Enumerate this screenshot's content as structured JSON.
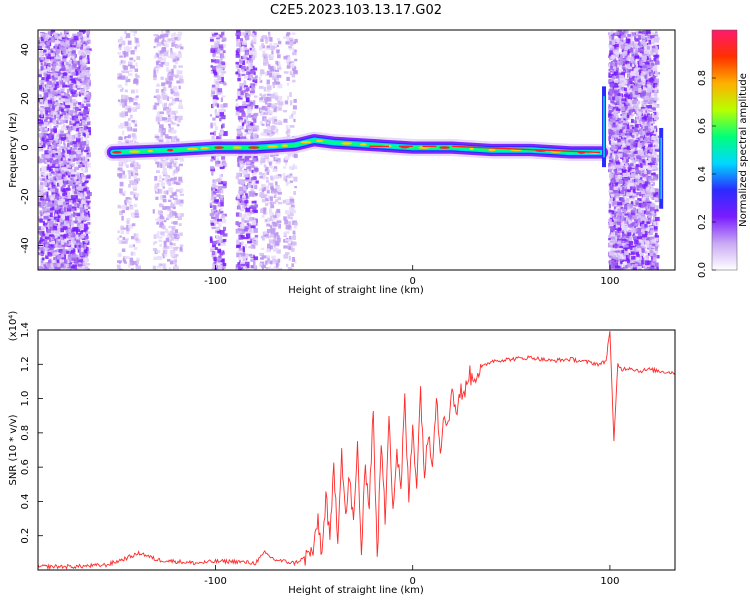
{
  "title": "C2E5.2023.103.13.17.G02",
  "chart_data": [
    {
      "type": "heatmap",
      "xlabel": "Height of straight line (km)",
      "ylabel": "Frequency (Hz)",
      "xlim": [
        -190,
        133
      ],
      "ylim": [
        -50,
        48
      ],
      "xticks": [
        -100,
        0,
        100
      ],
      "yticks": [
        -40,
        -20,
        0,
        20,
        40
      ],
      "ridge": [
        {
          "x": -152,
          "y": -2
        },
        {
          "x": -120,
          "y": -1
        },
        {
          "x": -100,
          "y": 0
        },
        {
          "x": -80,
          "y": 0
        },
        {
          "x": -60,
          "y": 1
        },
        {
          "x": -50,
          "y": 3
        },
        {
          "x": -40,
          "y": 2
        },
        {
          "x": -20,
          "y": 1
        },
        {
          "x": 0,
          "y": 0
        },
        {
          "x": 20,
          "y": 0
        },
        {
          "x": 40,
          "y": -1
        },
        {
          "x": 60,
          "y": -1
        },
        {
          "x": 80,
          "y": -2
        },
        {
          "x": 96,
          "y": -2
        }
      ],
      "colorbar": {
        "label": "Normalized spectral amplitude",
        "range": [
          0,
          1
        ],
        "ticks": [
          "0.0",
          "0.2",
          "0.4",
          "0.6",
          "0.8"
        ],
        "colors": [
          "#ffffff",
          "#c9a9f4",
          "#7a1cff",
          "#2b2bff",
          "#00d8ff",
          "#00ff7a",
          "#b8ff00",
          "#ffb000",
          "#ff3000",
          "#ff1a6e"
        ]
      }
    },
    {
      "type": "line",
      "xlabel": "Height of straight line (km)",
      "ylabel": "SNR (10 * v/v)",
      "y_multiplier": "(x10⁴)",
      "xlim": [
        -190,
        133
      ],
      "ylim": [
        0.0,
        1.4
      ],
      "xticks": [
        -100,
        0,
        100
      ],
      "yticks": [
        0.2,
        0.4,
        0.6,
        0.8,
        1.0,
        1.2,
        1.4
      ],
      "color": "#ff2a2a",
      "series": [
        {
          "x": [
            -190,
            -170,
            -155,
            -145,
            -138,
            -130,
            -120,
            -110,
            -100,
            -90,
            -80,
            -75,
            -70,
            -60,
            -55,
            -50,
            -48,
            -46,
            -44,
            -42,
            -40,
            -38,
            -36,
            -34,
            -32,
            -30,
            -28,
            -26,
            -24,
            -22,
            -20,
            -18,
            -16,
            -14,
            -12,
            -10,
            -8,
            -6,
            -4,
            -2,
            0,
            2,
            4,
            6,
            8,
            10,
            12,
            14,
            16,
            18,
            20,
            22,
            24,
            26,
            28,
            30,
            35,
            40,
            50,
            60,
            70,
            80,
            90,
            95,
            98,
            100,
            102,
            104,
            106,
            110,
            115,
            120,
            125,
            133
          ],
          "values": [
            0.02,
            0.02,
            0.03,
            0.07,
            0.1,
            0.06,
            0.05,
            0.04,
            0.05,
            0.05,
            0.04,
            0.1,
            0.06,
            0.04,
            0.07,
            0.12,
            0.3,
            0.08,
            0.45,
            0.15,
            0.6,
            0.2,
            0.7,
            0.3,
            0.55,
            0.25,
            0.72,
            0.1,
            0.6,
            0.4,
            0.95,
            0.05,
            0.75,
            0.3,
            0.95,
            0.35,
            0.7,
            0.45,
            1.0,
            0.4,
            0.85,
            0.5,
            1.05,
            0.55,
            0.8,
            0.65,
            1.02,
            0.7,
            0.95,
            0.82,
            1.1,
            0.9,
            1.05,
            1.0,
            1.15,
            1.12,
            1.18,
            1.22,
            1.23,
            1.24,
            1.22,
            1.23,
            1.21,
            1.2,
            1.22,
            1.4,
            0.74,
            1.2,
            1.17,
            1.18,
            1.16,
            1.17,
            1.16,
            1.15
          ]
        }
      ]
    }
  ]
}
